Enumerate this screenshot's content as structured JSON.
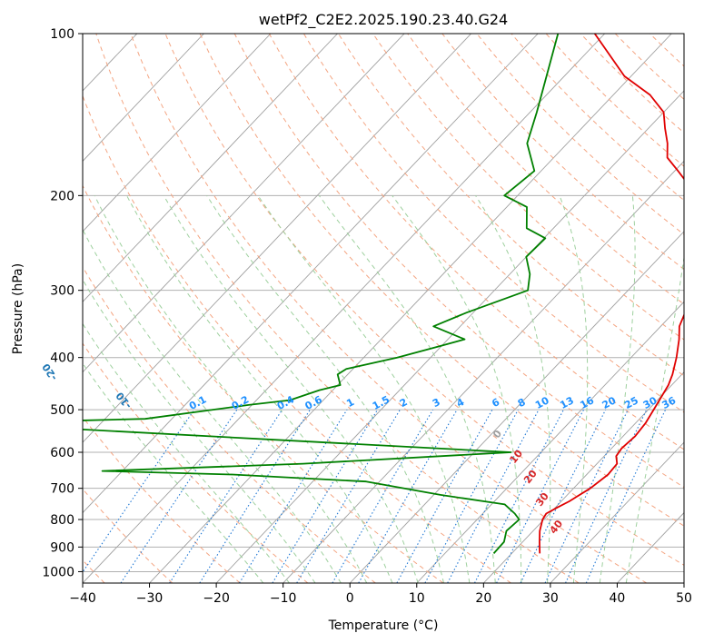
{
  "chart_data": {
    "type": "line",
    "title": "wetPf2_C2E2.2025.190.23.40.G24",
    "xlabel": "Temperature (°C)",
    "ylabel": "Pressure (hPa)",
    "xlim": [
      -40,
      50
    ],
    "ylim": [
      1050,
      100
    ],
    "y_scale": "log",
    "x_ticks": [
      -40,
      -30,
      -20,
      -10,
      0,
      10,
      20,
      30,
      40,
      50
    ],
    "y_ticks": [
      100,
      200,
      300,
      400,
      500,
      600,
      700,
      800,
      900,
      1000
    ],
    "grid": true,
    "skew": true,
    "series": [
      {
        "color": "#e00000",
        "x": [
          24.2,
          22.5,
          21.0,
          19.8,
          19.5,
          20.3,
          21.2,
          22.5,
          23.2,
          23.0,
          21.8,
          21.5,
          21.8,
          21.5,
          20.8,
          20.3,
          19.5,
          18.6,
          16.8,
          14.6,
          12.8,
          11.7,
          10.6,
          8.8,
          4.2,
          -3.2,
          -9.5,
          -13.0,
          -15.0,
          -17.5,
          -20.0,
          -24.5,
          -31.0,
          -41.5
        ],
        "y": [
          925,
          880,
          840,
          800,
          780,
          760,
          740,
          700,
          660,
          630,
          610,
          590,
          560,
          530,
          500,
          480,
          450,
          430,
          400,
          370,
          350,
          330,
          310,
          290,
          250,
          200,
          180,
          170,
          160,
          150,
          140,
          130,
          120,
          100
        ]
      },
      {
        "color": "#008000",
        "x": [
          17.3,
          17.2,
          16.0,
          16.3,
          14.8,
          12.0,
          1.0,
          -12.0,
          -33.0,
          -53.0,
          -24.0,
          5.5,
          -30.0,
          -80.0,
          -54.0,
          -40.5,
          -35.0,
          -32.0,
          -29.6,
          -31.5,
          -31.0,
          -25.0,
          -20.0,
          -17.5,
          -24.0,
          -21.0,
          -15.0,
          -17.0,
          -20.0,
          -19.8,
          -24.0,
          -27.0,
          -32.0,
          -31.0,
          -36.0,
          -39.0,
          -47.0
        ],
        "y": [
          925,
          880,
          840,
          800,
          780,
          750,
          720,
          680,
          660,
          650,
          630,
          600,
          570,
          530,
          520,
          490,
          480,
          460,
          450,
          430,
          420,
          400,
          380,
          370,
          350,
          330,
          300,
          280,
          260,
          240,
          230,
          210,
          200,
          180,
          160,
          140,
          100
        ]
      }
    ],
    "reference_lines": {
      "dry_adiabats": [
        "-100",
        "-90",
        "-80",
        "-70",
        "-60",
        "-50",
        "-40",
        "-30",
        "-20",
        "-10"
      ],
      "moist_adiabats": [
        "0",
        "10",
        "20",
        "30",
        "40"
      ],
      "mixing_ratios": [
        "0.1",
        "0.2",
        "0.4",
        "0.6",
        "1",
        "1.5",
        "2",
        "3",
        "4",
        "6",
        "8",
        "10",
        "13",
        "16",
        "20",
        "25",
        "30",
        "36"
      ]
    },
    "colors": {
      "temperature": "#e00000",
      "dewpoint": "#008000",
      "isotherm": "#a0a0a0",
      "dry_adiabat": "#f4a582",
      "moist_adiabat": "#9ed09e",
      "mixing_ratio": "#1f77d4",
      "label_dry": "#1f77b4",
      "label_moist": "#d62728",
      "label_mix": "#1e90ff"
    }
  }
}
